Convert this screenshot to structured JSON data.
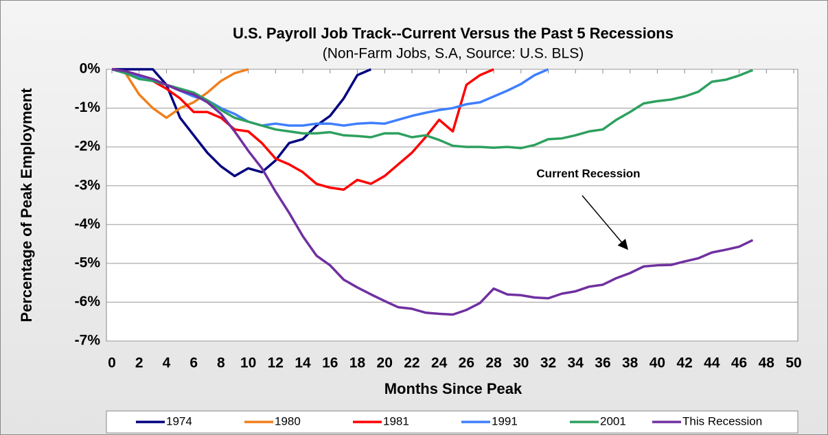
{
  "chart_data": {
    "type": "line",
    "title": "U.S. Payroll Job Track--Current Versus the Past 5 Recessions",
    "subtitle": "(Non-Farm Jobs, S.A, Source: U.S. BLS)",
    "x_label": "Months Since Peak",
    "y_label": "Percentage of Peak Employment",
    "annotation": "Current Recession",
    "x": [
      0,
      1,
      2,
      3,
      4,
      5,
      6,
      7,
      8,
      9,
      10,
      11,
      12,
      13,
      14,
      15,
      16,
      17,
      18,
      19,
      20,
      21,
      22,
      23,
      24,
      25,
      26,
      27,
      28,
      29,
      30,
      31,
      32,
      33,
      34,
      35,
      36,
      37,
      38,
      39,
      40,
      41,
      42,
      43,
      44,
      45,
      46,
      47
    ],
    "series": [
      {
        "name": "1974",
        "color": "#000080",
        "values": [
          0,
          0,
          0,
          0,
          -0.4,
          -1.25,
          -1.7,
          -2.15,
          -2.5,
          -2.75,
          -2.55,
          -2.65,
          -2.35,
          -1.9,
          -1.8,
          -1.45,
          -1.2,
          -0.75,
          -0.15,
          0,
          null,
          null,
          null,
          null,
          null,
          null,
          null,
          null,
          null,
          null,
          null,
          null,
          null,
          null,
          null,
          null,
          null,
          null,
          null,
          null,
          null,
          null,
          null,
          null,
          null,
          null,
          null,
          null
        ]
      },
      {
        "name": "1980",
        "color": "#f07f1c",
        "values": [
          0,
          -0.1,
          -0.65,
          -1.0,
          -1.25,
          -1.0,
          -0.85,
          -0.6,
          -0.3,
          -0.1,
          0,
          null,
          null,
          null,
          null,
          null,
          null,
          null,
          null,
          null,
          null,
          null,
          null,
          null,
          null,
          null,
          null,
          null,
          null,
          null,
          null,
          null,
          null,
          null,
          null,
          null,
          null,
          null,
          null,
          null,
          null,
          null,
          null,
          null,
          null,
          null,
          null,
          null
        ]
      },
      {
        "name": "1981",
        "color": "#ff0000",
        "values": [
          0,
          -0.05,
          -0.15,
          -0.3,
          -0.5,
          -0.75,
          -1.1,
          -1.1,
          -1.25,
          -1.55,
          -1.6,
          -1.9,
          -2.3,
          -2.45,
          -2.65,
          -2.95,
          -3.05,
          -3.1,
          -2.85,
          -2.95,
          -2.75,
          -2.45,
          -2.15,
          -1.75,
          -1.3,
          -1.6,
          -0.4,
          -0.15,
          0,
          null,
          null,
          null,
          null,
          null,
          null,
          null,
          null,
          null,
          null,
          null,
          null,
          null,
          null,
          null,
          null,
          null,
          null,
          null
        ]
      },
      {
        "name": "1991",
        "color": "#3f7fff",
        "values": [
          0,
          -0.1,
          -0.2,
          -0.3,
          -0.4,
          -0.55,
          -0.7,
          -0.8,
          -1.0,
          -1.15,
          -1.35,
          -1.45,
          -1.4,
          -1.45,
          -1.45,
          -1.4,
          -1.4,
          -1.45,
          -1.4,
          -1.38,
          -1.4,
          -1.3,
          -1.2,
          -1.12,
          -1.05,
          -1.0,
          -0.9,
          -0.85,
          -0.7,
          -0.55,
          -0.38,
          -0.15,
          0,
          null,
          null,
          null,
          null,
          null,
          null,
          null,
          null,
          null,
          null,
          null,
          null,
          null,
          null,
          null
        ]
      },
      {
        "name": "2001",
        "color": "#2ea05f",
        "values": [
          0,
          -0.1,
          -0.25,
          -0.3,
          -0.4,
          -0.5,
          -0.6,
          -0.8,
          -1.05,
          -1.25,
          -1.35,
          -1.45,
          -1.55,
          -1.6,
          -1.65,
          -1.65,
          -1.62,
          -1.7,
          -1.72,
          -1.75,
          -1.65,
          -1.65,
          -1.75,
          -1.7,
          -1.82,
          -1.97,
          -2.0,
          -2.0,
          -2.02,
          -2.0,
          -2.03,
          -1.95,
          -1.8,
          -1.78,
          -1.7,
          -1.6,
          -1.55,
          -1.3,
          -1.1,
          -0.88,
          -0.82,
          -0.78,
          -0.7,
          -0.58,
          -0.32,
          -0.27,
          -0.16,
          -0.02
        ]
      },
      {
        "name": "This Recession",
        "color": "#7030a0",
        "values": [
          0,
          -0.05,
          -0.15,
          -0.25,
          -0.4,
          -0.55,
          -0.65,
          -0.85,
          -1.15,
          -1.6,
          -2.1,
          -2.55,
          -3.15,
          -3.7,
          -4.3,
          -4.8,
          -5.05,
          -5.42,
          -5.62,
          -5.8,
          -5.97,
          -6.13,
          -6.17,
          -6.27,
          -6.3,
          -6.32,
          -6.2,
          -6.02,
          -5.65,
          -5.8,
          -5.82,
          -5.88,
          -5.9,
          -5.78,
          -5.72,
          -5.6,
          -5.55,
          -5.38,
          -5.25,
          -5.08,
          -5.05,
          -5.04,
          -4.95,
          -4.87,
          -4.72,
          -4.65,
          -4.57,
          -4.4
        ]
      }
    ],
    "xlim": [
      0,
      50
    ],
    "xticks": [
      0,
      2,
      4,
      6,
      8,
      10,
      12,
      14,
      16,
      18,
      20,
      22,
      24,
      26,
      28,
      30,
      32,
      34,
      36,
      38,
      40,
      42,
      44,
      46,
      48,
      50
    ],
    "ylim": [
      -7,
      0
    ],
    "yticks": [
      {
        "value": -7,
        "label": "-7%"
      },
      {
        "value": -6,
        "label": "-6%"
      },
      {
        "value": -5,
        "label": "-5%"
      },
      {
        "value": -4,
        "label": "-4%"
      },
      {
        "value": -3,
        "label": "-3%"
      },
      {
        "value": -2,
        "label": "-2%"
      },
      {
        "value": -1,
        "label": "-1%"
      },
      {
        "value": 0,
        "label": "0%"
      }
    ],
    "grid": true,
    "legend": "bottom"
  }
}
